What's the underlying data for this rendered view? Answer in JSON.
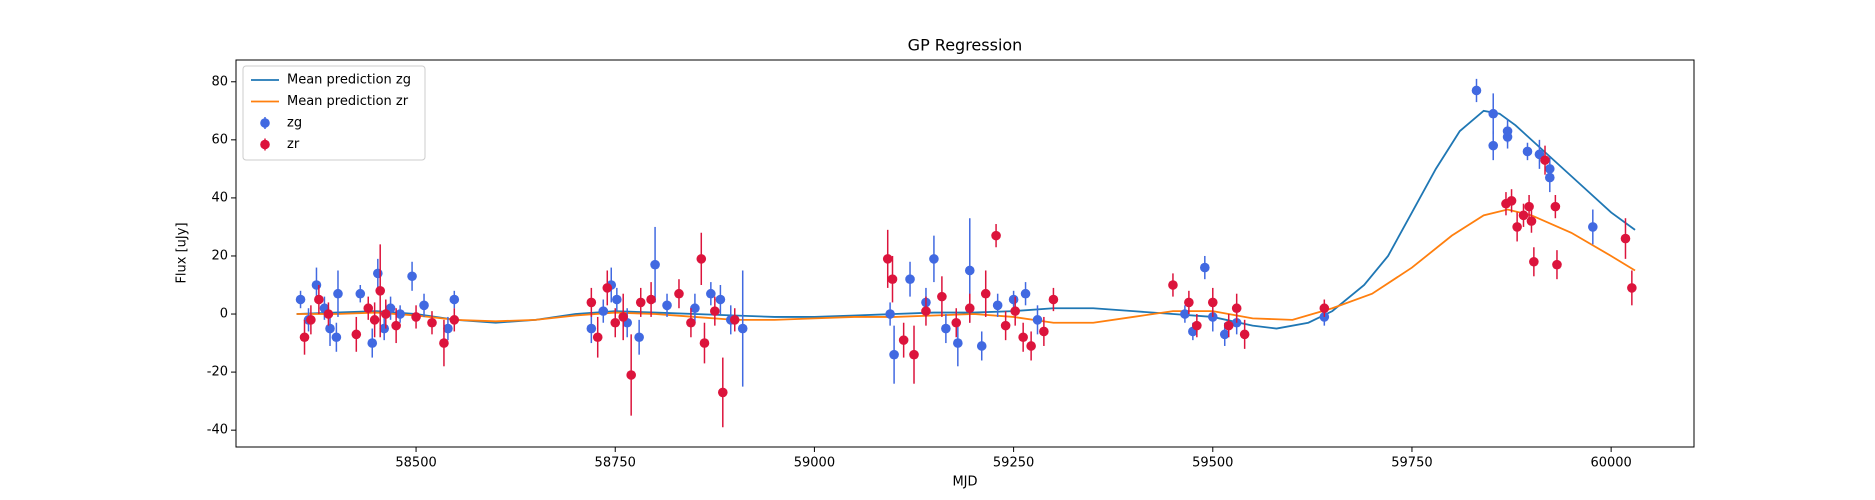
{
  "chart_data": {
    "type": "errorbar",
    "title": "GP Regression",
    "xlabel": "MJD",
    "ylabel": "Flux [uJy]",
    "xlim": [
      58274,
      60104
    ],
    "ylim": [
      -45.8,
      87.5
    ],
    "xticks": [
      58500,
      58750,
      59000,
      59250,
      59500,
      59750,
      60000
    ],
    "yticks": [
      -40,
      -20,
      0,
      20,
      40,
      60,
      80
    ],
    "legend": "upper left",
    "series": [
      {
        "name": "Mean prediction zg",
        "type": "line",
        "color": "#1f77b4",
        "x": [
          58350,
          58400,
          58450,
          58500,
          58550,
          58600,
          58650,
          58700,
          58750,
          58800,
          58850,
          58900,
          58950,
          59000,
          59050,
          59100,
          59150,
          59200,
          59250,
          59300,
          59350,
          59400,
          59450,
          59500,
          59550,
          59580,
          59620,
          59650,
          59690,
          59720,
          59750,
          59780,
          59810,
          59840,
          59860,
          59880,
          59920,
          59960,
          60000,
          60030
        ],
        "values": [
          0,
          0.5,
          1,
          0,
          -2,
          -3,
          -2,
          0,
          1,
          0.5,
          0,
          -0.5,
          -1,
          -1,
          -0.5,
          0,
          0.5,
          0.5,
          1,
          2,
          2,
          1,
          0,
          -1,
          -4,
          -5,
          -3,
          1,
          10,
          20,
          35,
          50,
          63,
          70,
          69,
          65,
          55,
          45,
          35,
          29
        ]
      },
      {
        "name": "Mean prediction zr",
        "type": "line",
        "color": "#ff7f0e",
        "x": [
          58350,
          58400,
          58450,
          58500,
          58550,
          58600,
          58650,
          58700,
          58750,
          58800,
          58850,
          58900,
          58950,
          59000,
          59050,
          59100,
          59150,
          59200,
          59250,
          59300,
          59350,
          59400,
          59450,
          59500,
          59550,
          59600,
          59650,
          59700,
          59750,
          59800,
          59840,
          59870,
          59900,
          59950,
          60000,
          60030
        ],
        "values": [
          0,
          0,
          0.5,
          -0.5,
          -2,
          -2.5,
          -2,
          -0.5,
          0.5,
          0,
          -1,
          -2,
          -2,
          -1.5,
          -1,
          -1,
          -0.5,
          0,
          -1,
          -3,
          -3,
          -1,
          1,
          1,
          -1.5,
          -2,
          2,
          7,
          16,
          27,
          34,
          36,
          34,
          28,
          20,
          15
        ]
      },
      {
        "name": "zg",
        "type": "points",
        "color": "#4169e1",
        "x": [
          58355,
          58365,
          58375,
          58385,
          58392,
          58400,
          58402,
          58430,
          58445,
          58452,
          58460,
          58468,
          58480,
          58495,
          58510,
          58540,
          58548,
          58720,
          58735,
          58745,
          58752,
          58765,
          58780,
          58800,
          58815,
          58850,
          58870,
          58882,
          58895,
          58910,
          59095,
          59100,
          59120,
          59140,
          59150,
          59165,
          59180,
          59195,
          59210,
          59230,
          59250,
          59265,
          59280,
          59465,
          59475,
          59490,
          59500,
          59515,
          59530,
          59640,
          59831,
          59852,
          59852,
          59870,
          59870,
          59895,
          59910,
          59923,
          59923,
          59977
        ],
        "values": [
          5,
          -2,
          10,
          2,
          -5,
          -8,
          7,
          7,
          -10,
          14,
          -5,
          2,
          0,
          13,
          3,
          -5,
          5,
          -5,
          1,
          10,
          5,
          -3,
          -8,
          17,
          3,
          2,
          7,
          5,
          -2,
          -5,
          0,
          -14,
          12,
          4,
          19,
          -5,
          -10,
          15,
          -11,
          3,
          5,
          7,
          -2,
          0,
          -6,
          16,
          -1,
          -7,
          -3,
          -1,
          77,
          58,
          69,
          61,
          63,
          56,
          55,
          50,
          47,
          30
        ],
        "errors": [
          3,
          4,
          6,
          4,
          6,
          5,
          8,
          3,
          5,
          5,
          4,
          4,
          3,
          5,
          4,
          4,
          3,
          5,
          4,
          6,
          4,
          5,
          6,
          13,
          4,
          5,
          4,
          5,
          5,
          20,
          4,
          10,
          6,
          5,
          8,
          5,
          8,
          18,
          5,
          4,
          3,
          4,
          5,
          3,
          3,
          4,
          5,
          4,
          4,
          3,
          4,
          5,
          7,
          4,
          4,
          3,
          5,
          4,
          5,
          6
        ]
      },
      {
        "name": "zr",
        "type": "points",
        "color": "#dc143c",
        "x": [
          58360,
          58368,
          58378,
          58390,
          58425,
          58440,
          58448,
          58455,
          58462,
          58475,
          58500,
          58520,
          58535,
          58548,
          58720,
          58728,
          58740,
          58750,
          58760,
          58770,
          58782,
          58795,
          58830,
          58845,
          58858,
          58862,
          58875,
          58885,
          58900,
          59092,
          59098,
          59112,
          59125,
          59140,
          59160,
          59178,
          59195,
          59215,
          59228,
          59240,
          59252,
          59262,
          59272,
          59288,
          59300,
          59450,
          59470,
          59480,
          59500,
          59520,
          59530,
          59540,
          59640,
          59868,
          59875,
          59882,
          59890,
          59897,
          59900,
          59903,
          59917,
          59930,
          59932,
          60018,
          60026
        ],
        "values": [
          -8,
          -2,
          5,
          0,
          -7,
          2,
          -2,
          8,
          0,
          -4,
          -1,
          -3,
          -10,
          -2,
          4,
          -8,
          9,
          -3,
          -1,
          -21,
          4,
          5,
          7,
          -3,
          19,
          -10,
          1,
          -27,
          -2,
          19,
          12,
          -9,
          -14,
          1,
          6,
          -3,
          2,
          7,
          27,
          -4,
          1,
          -8,
          -11,
          -6,
          5,
          10,
          4,
          -4,
          4,
          -4,
          2,
          -7,
          2,
          38,
          39,
          30,
          34,
          37,
          32,
          18,
          53,
          37,
          17,
          26,
          9
        ],
        "errors": [
          6,
          5,
          5,
          4,
          6,
          4,
          6,
          16,
          5,
          6,
          4,
          4,
          8,
          4,
          5,
          7,
          6,
          5,
          8,
          14,
          5,
          6,
          5,
          5,
          9,
          7,
          5,
          12,
          4,
          10,
          8,
          6,
          10,
          5,
          7,
          5,
          5,
          8,
          4,
          5,
          5,
          5,
          5,
          5,
          4,
          4,
          4,
          4,
          5,
          4,
          5,
          5,
          3,
          4,
          4,
          5,
          4,
          4,
          4,
          5,
          5,
          4,
          5,
          7,
          6
        ]
      }
    ]
  }
}
